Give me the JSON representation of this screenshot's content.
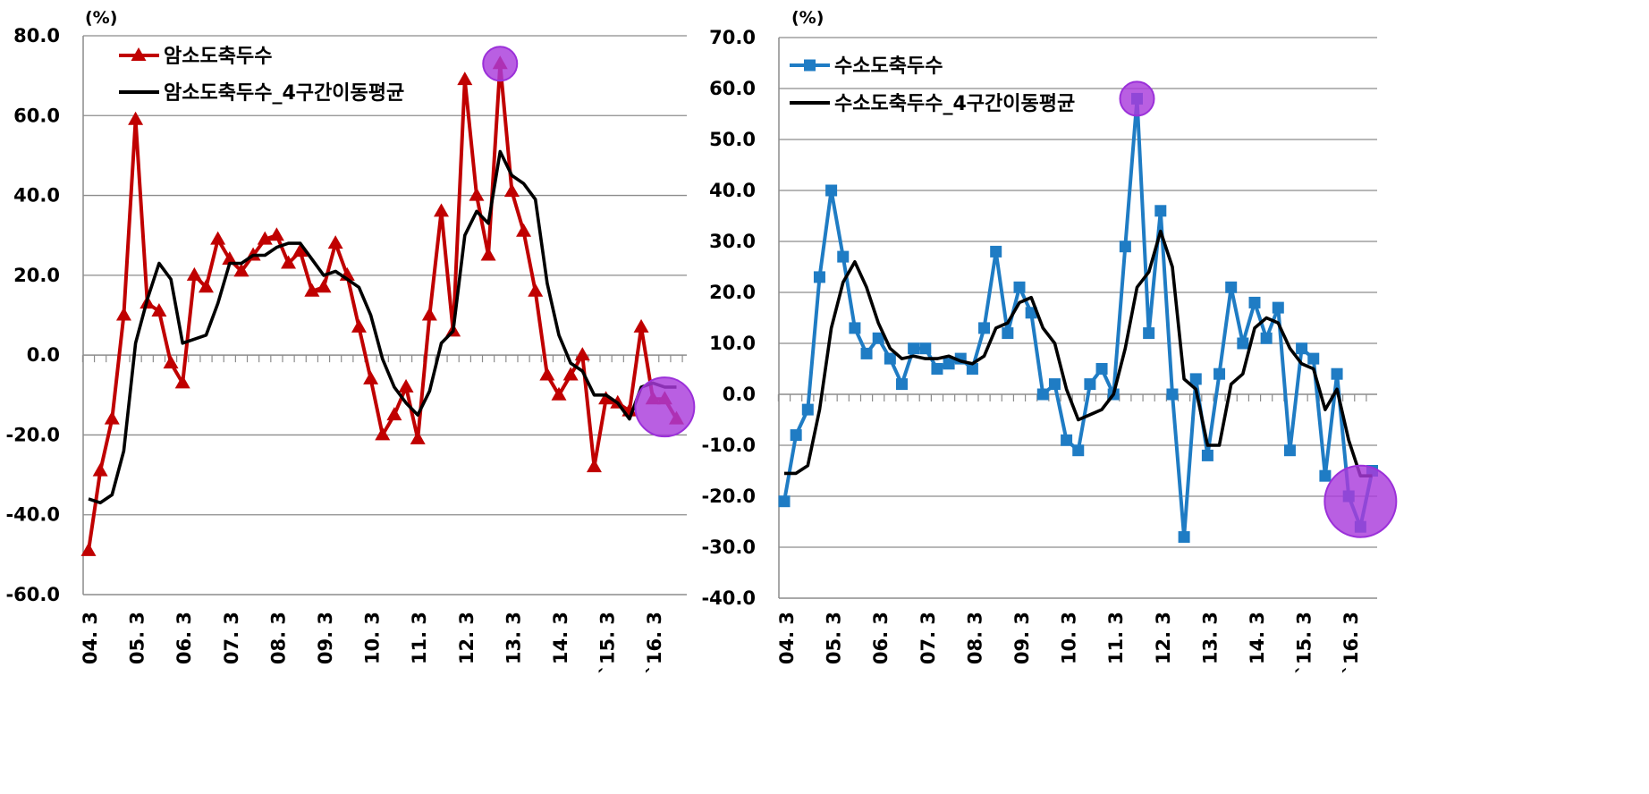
{
  "chart_data": [
    {
      "type": "line",
      "unit_label": "(%)",
      "ylim": [
        -60,
        80
      ],
      "y_ticks": [
        "80.0",
        "60.0",
        "40.0",
        "20.0",
        "0.0",
        "-20.0",
        "-40.0",
        "-60.0"
      ],
      "y_tick_values": [
        80,
        60,
        40,
        20,
        0,
        -20,
        -40,
        -60
      ],
      "x_tick_labels": [
        "04. 3",
        "05. 3",
        "06. 3",
        "07. 3",
        "08. 3",
        "09. 3",
        "10. 3",
        "11. 3",
        "12. 3",
        "13. 3",
        "14. 3",
        "`15. 3",
        "`16. 3"
      ],
      "grid": true,
      "legend_position": "top-left",
      "series": [
        {
          "name": "암소도축두수",
          "color": "#c00000",
          "marker": "triangle",
          "values": [
            -49,
            -29,
            -16,
            10,
            59,
            13,
            11,
            -2,
            -7,
            20,
            17,
            29,
            24,
            21,
            25,
            29,
            30,
            23,
            26,
            16,
            17,
            28,
            20,
            7,
            -6,
            -20,
            -15,
            -8,
            -21,
            10,
            36,
            6,
            69,
            40,
            25,
            73,
            41,
            31,
            16,
            -5,
            -10,
            -5,
            0,
            -28,
            -11,
            -12,
            -14,
            7,
            -11,
            -11,
            -16
          ]
        },
        {
          "name": "암소도축두수_4구간이동평균",
          "color": "#000000",
          "marker": "none",
          "values": [
            -36,
            -37,
            -35,
            -24,
            3,
            14,
            23,
            19,
            3,
            4,
            5,
            13,
            23,
            23,
            25,
            25,
            27,
            28,
            28,
            24,
            20,
            21,
            19,
            17,
            10,
            -1,
            -8,
            -12,
            -15,
            -9,
            3,
            6,
            30,
            36,
            33,
            51,
            45,
            43,
            39,
            18,
            5,
            -2,
            -4,
            -10,
            -10,
            -12,
            -16,
            -8,
            -7,
            -8,
            -8
          ]
        }
      ],
      "highlights": [
        {
          "x_index": 35,
          "y": 73,
          "size": "small"
        },
        {
          "x_index": 49,
          "y": -13,
          "size": "large"
        }
      ]
    },
    {
      "type": "line",
      "unit_label": "(%)",
      "ylim": [
        -40,
        70
      ],
      "y_ticks": [
        "70.0",
        "60.0",
        "50.0",
        "40.0",
        "30.0",
        "20.0",
        "10.0",
        "0.0",
        "-10.0",
        "-20.0",
        "-30.0",
        "-40.0"
      ],
      "y_tick_values": [
        70,
        60,
        50,
        40,
        30,
        20,
        10,
        0,
        -10,
        -20,
        -30,
        -40
      ],
      "x_tick_labels": [
        "04. 3",
        "05. 3",
        "06. 3",
        "07. 3",
        "08. 3",
        "09. 3",
        "10. 3",
        "11. 3",
        "12. 3",
        "13. 3",
        "14. 3",
        "`15. 3",
        "`16. 3"
      ],
      "grid": true,
      "legend_position": "top-left",
      "series": [
        {
          "name": "수소도축두수",
          "color": "#1f7cc4",
          "marker": "square",
          "values": [
            -21,
            -8,
            -3,
            23,
            40,
            27,
            13,
            8,
            11,
            7,
            2,
            9,
            9,
            5,
            6,
            7,
            5,
            13,
            28,
            12,
            21,
            16,
            0,
            2,
            -9,
            -11,
            2,
            5,
            0,
            29,
            58,
            12,
            36,
            0,
            -28,
            3,
            -12,
            4,
            21,
            10,
            18,
            11,
            17,
            -11,
            9,
            7,
            -16,
            4,
            -20,
            -26,
            -15
          ]
        },
        {
          "name": "수소도축두수_4구간이동평균",
          "color": "#000000",
          "marker": "none",
          "values": [
            -15.5,
            -15.5,
            -14,
            -3,
            13,
            22,
            26,
            21,
            14,
            9,
            7,
            7.5,
            7,
            7,
            7.5,
            6.5,
            6,
            7.5,
            13,
            14,
            18,
            19,
            13,
            10,
            1,
            -5,
            -4,
            -3,
            0,
            9,
            21,
            24,
            32,
            25,
            3,
            1,
            -10,
            -10,
            2,
            4,
            13,
            15,
            14,
            9,
            6,
            5,
            -3,
            1,
            -9,
            -16,
            -16
          ]
        }
      ],
      "highlights": [
        {
          "x_index": 30,
          "y": 58,
          "size": "small"
        },
        {
          "x_index": 49,
          "y": -21,
          "size": "large"
        }
      ]
    }
  ]
}
